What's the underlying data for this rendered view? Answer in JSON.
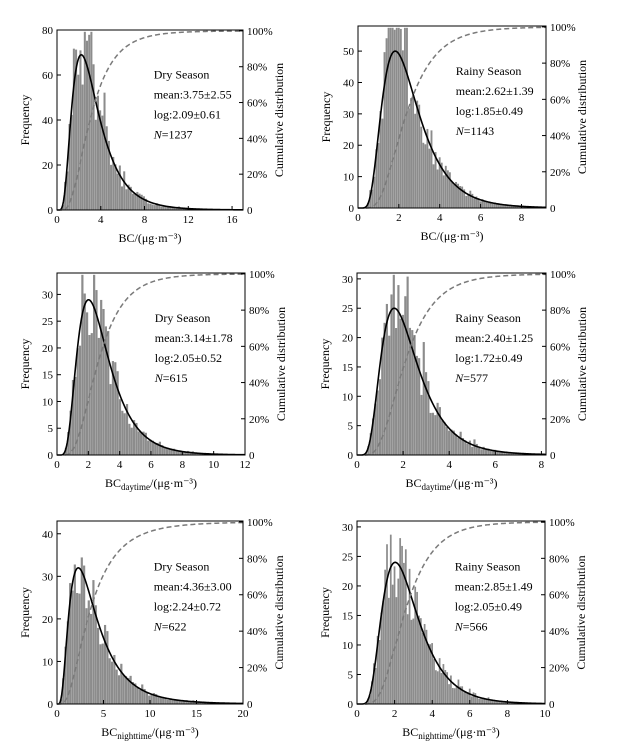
{
  "chart_data": [
    {
      "type": "bar",
      "x_tick_labels": [
        "0",
        "4",
        "8",
        "12",
        "16"
      ],
      "xlim": [
        0,
        17
      ],
      "y_tick_labels": [
        "0",
        "20",
        "40",
        "60",
        "80"
      ],
      "ylim": [
        0,
        80
      ],
      "y2_tick_labels": [
        "0",
        "20%",
        "40%",
        "60%",
        "80%",
        "100%"
      ],
      "xlabel": "BC/(μg·m⁻³)",
      "xlabel_main": "BC",
      "xlabel_sub": "",
      "xlabel_unit": "/(μg·m⁻³)",
      "ylabel": "Frequency",
      "y2label": "Cumulative distribution",
      "annotations": [
        "Dry Season",
        "mean:3.75±2.55",
        "log:2.09±0.61",
        "N=1237"
      ],
      "n_label": "N",
      "n_value": "=1237",
      "fit": {
        "mu": 1.1,
        "sigma": 0.55,
        "peak": 69
      },
      "hist": {
        "bin_width": 0.2,
        "x_max": 17
      }
    },
    {
      "type": "bar",
      "x_tick_labels": [
        "0",
        "2",
        "4",
        "6",
        "8"
      ],
      "xlim": [
        0,
        9.2
      ],
      "y_tick_labels": [
        "0",
        "10",
        "20",
        "30",
        "40",
        "50"
      ],
      "ylim": [
        0,
        58
      ],
      "y2_tick_labels": [
        "0",
        "20%",
        "40%",
        "60%",
        "80%",
        "100%"
      ],
      "xlabel": "BC/(μg·m⁻³)",
      "xlabel_main": "BC",
      "xlabel_sub": "",
      "xlabel_unit": "/(μg·m⁻³)",
      "ylabel": "Frequency",
      "y2label": "Cumulative distribution",
      "annotations": [
        "Rainy Season",
        "mean:2.62±1.39",
        "log:1.85±0.49",
        "N=1143"
      ],
      "n_label": "N",
      "n_value": "=1143",
      "fit": {
        "mu": 0.84,
        "sigma": 0.49,
        "peak": 50
      },
      "hist": {
        "bin_width": 0.1,
        "x_max": 9
      }
    },
    {
      "type": "bar",
      "x_tick_labels": [
        "0",
        "2",
        "4",
        "6",
        "8",
        "10",
        "12"
      ],
      "xlim": [
        0,
        12
      ],
      "y_tick_labels": [
        "0",
        "5",
        "10",
        "15",
        "20",
        "25",
        "30"
      ],
      "ylim": [
        0,
        34
      ],
      "y2_tick_labels": [
        "0",
        "20%",
        "40%",
        "60%",
        "80%",
        "100%"
      ],
      "xlabel": "BCdaytime/(μg·m⁻³)",
      "xlabel_main": "BC",
      "xlabel_sub": "daytime",
      "xlabel_unit": "/(μg·m⁻³)",
      "ylabel": "Frequency",
      "y2label": "Cumulative distribution",
      "annotations": [
        "Dry Season",
        "mean:3.14±1.78",
        "log:2.05±0.52",
        "N=615"
      ],
      "n_label": "N",
      "n_value": "=615",
      "fit": {
        "mu": 0.95,
        "sigma": 0.5,
        "peak": 29
      },
      "hist": {
        "bin_width": 0.15,
        "x_max": 12
      }
    },
    {
      "type": "bar",
      "x_tick_labels": [
        "0",
        "2",
        "4",
        "6",
        "8"
      ],
      "xlim": [
        0,
        8.2
      ],
      "y_tick_labels": [
        "0",
        "5",
        "10",
        "15",
        "20",
        "25",
        "30"
      ],
      "ylim": [
        0,
        31
      ],
      "y2_tick_labels": [
        "0",
        "20%",
        "40%",
        "60%",
        "80%",
        "100%"
      ],
      "xlabel": "BCdaytime/(μg·m⁻³)",
      "xlabel_main": "BC",
      "xlabel_sub": "daytime",
      "xlabel_unit": "/(μg·m⁻³)",
      "ylabel": "Frequency",
      "y2label": "Cumulative distribution",
      "annotations": [
        "Rainy Season",
        "mean:2.40±1.25",
        "log:1.72±0.49",
        "N=577"
      ],
      "n_label": "N",
      "n_value": "=577",
      "fit": {
        "mu": 0.72,
        "sigma": 0.49,
        "peak": 25
      },
      "hist": {
        "bin_width": 0.1,
        "x_max": 8
      }
    },
    {
      "type": "bar",
      "x_tick_labels": [
        "0",
        "5",
        "10",
        "15",
        "20"
      ],
      "xlim": [
        0,
        20
      ],
      "y_tick_labels": [
        "0",
        "10",
        "20",
        "30",
        "40"
      ],
      "ylim": [
        0,
        43
      ],
      "y2_tick_labels": [
        "0",
        "20%",
        "40%",
        "60%",
        "80%",
        "100%"
      ],
      "xlabel": "BCnighttime/(μg·m⁻³)",
      "xlabel_main": "BC",
      "xlabel_sub": "nighttime",
      "xlabel_unit": "/(μg·m⁻³)",
      "ylabel": "Frequency",
      "y2label": "Cumulative distribution",
      "annotations": [
        "Dry Season",
        "mean:4.36±3.00",
        "log:2.24±0.72",
        "N=622"
      ],
      "n_label": "N",
      "n_value": "=622",
      "fit": {
        "mu": 1.25,
        "sigma": 0.65,
        "peak": 32
      },
      "hist": {
        "bin_width": 0.25,
        "x_max": 20
      }
    },
    {
      "type": "bar",
      "x_tick_labels": [
        "0",
        "2",
        "4",
        "6",
        "8",
        "10"
      ],
      "xlim": [
        0,
        10
      ],
      "y_tick_labels": [
        "0",
        "5",
        "10",
        "15",
        "20",
        "25",
        "30"
      ],
      "ylim": [
        0,
        31
      ],
      "y2_tick_labels": [
        "0",
        "20%",
        "40%",
        "60%",
        "80%",
        "100%"
      ],
      "xlabel": "BCnighttime/(μg·m⁻³)",
      "xlabel_main": "BC",
      "xlabel_sub": "nighttime",
      "xlabel_unit": "/(μg·m⁻³)",
      "ylabel": "Frequency",
      "y2label": "Cumulative distribution",
      "annotations": [
        "Rainy Season",
        "mean:2.85±1.49",
        "log:2.05±0.49",
        "N=566"
      ],
      "n_label": "N",
      "n_value": "=566",
      "fit": {
        "mu": 0.93,
        "sigma": 0.47,
        "peak": 24
      },
      "hist": {
        "bin_width": 0.1,
        "x_max": 10
      }
    }
  ],
  "colors": {
    "bars": "#8c8c8c",
    "fit_line": "#000000",
    "cumulative_line": "#7a7a7a",
    "axes": "#000000"
  }
}
